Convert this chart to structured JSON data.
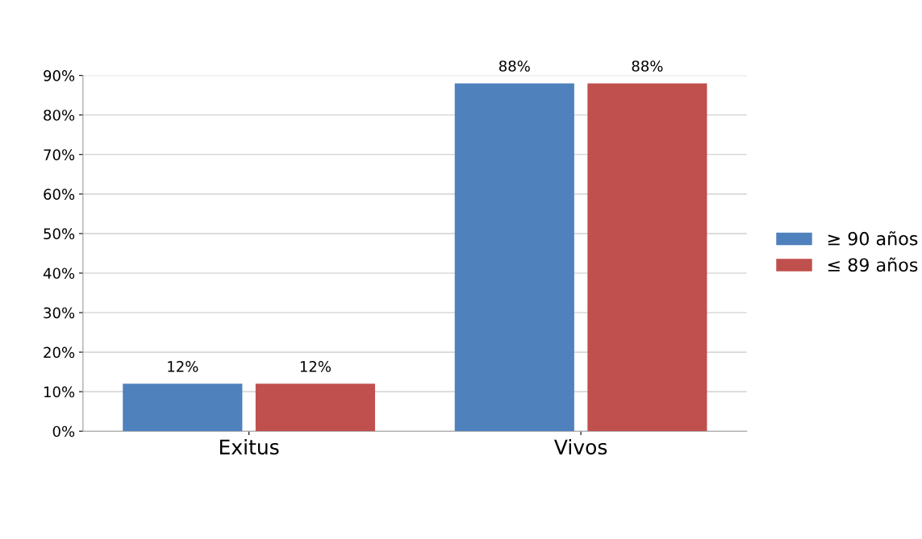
{
  "chart_data": {
    "type": "bar",
    "categories": [
      "Exitus",
      "Vivos"
    ],
    "series": [
      {
        "name": "≥ 90 años",
        "color": "#4f81bd",
        "values": [
          12,
          88
        ],
        "value_labels": [
          "12%",
          "88%"
        ]
      },
      {
        "name": "≤ 89 años",
        "color": "#c0504d",
        "values": [
          12,
          88
        ],
        "value_labels": [
          "12%",
          "88%"
        ]
      }
    ],
    "ylim": [
      0,
      90
    ],
    "yticks": [
      {
        "value": 0,
        "label": "0%"
      },
      {
        "value": 10,
        "label": "10%"
      },
      {
        "value": 20,
        "label": "20%"
      },
      {
        "value": 30,
        "label": "30%"
      },
      {
        "value": 40,
        "label": "40%"
      },
      {
        "value": 50,
        "label": "50%"
      },
      {
        "value": 60,
        "label": "60%"
      },
      {
        "value": 70,
        "label": "70%"
      },
      {
        "value": 80,
        "label": "80%"
      },
      {
        "value": 90,
        "label": "90%"
      }
    ],
    "grid": "y",
    "legend": "right"
  }
}
